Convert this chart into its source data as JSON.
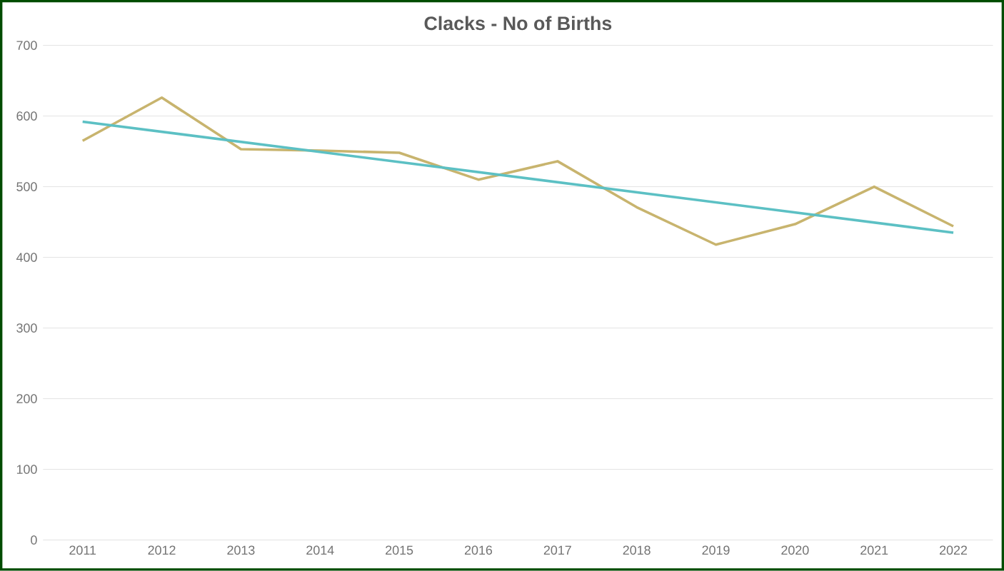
{
  "chart_data": {
    "type": "line",
    "title": "Clacks - No of Births",
    "x": [
      2011,
      2012,
      2013,
      2014,
      2015,
      2016,
      2017,
      2018,
      2019,
      2020,
      2021,
      2022
    ],
    "series": [
      {
        "color": "#c8b46e",
        "values": [
          565,
          626,
          553,
          551,
          548,
          510,
          536,
          471,
          418,
          447,
          500,
          444
        ]
      },
      {
        "type": "line",
        "color": "#5cc0c4",
        "x": [
          2011,
          2022
        ],
        "values": [
          592,
          435
        ]
      }
    ],
    "xlim": [
      2010.5,
      2022.5
    ],
    "xticks": [
      2011,
      2012,
      2013,
      2014,
      2015,
      2016,
      2017,
      2018,
      2019,
      2020,
      2021,
      2022
    ],
    "ylim": [
      0,
      700
    ],
    "yticks": [
      0,
      100,
      200,
      300,
      400,
      500,
      600,
      700
    ],
    "grid": "y",
    "marker": "none",
    "line_style": "solid"
  }
}
